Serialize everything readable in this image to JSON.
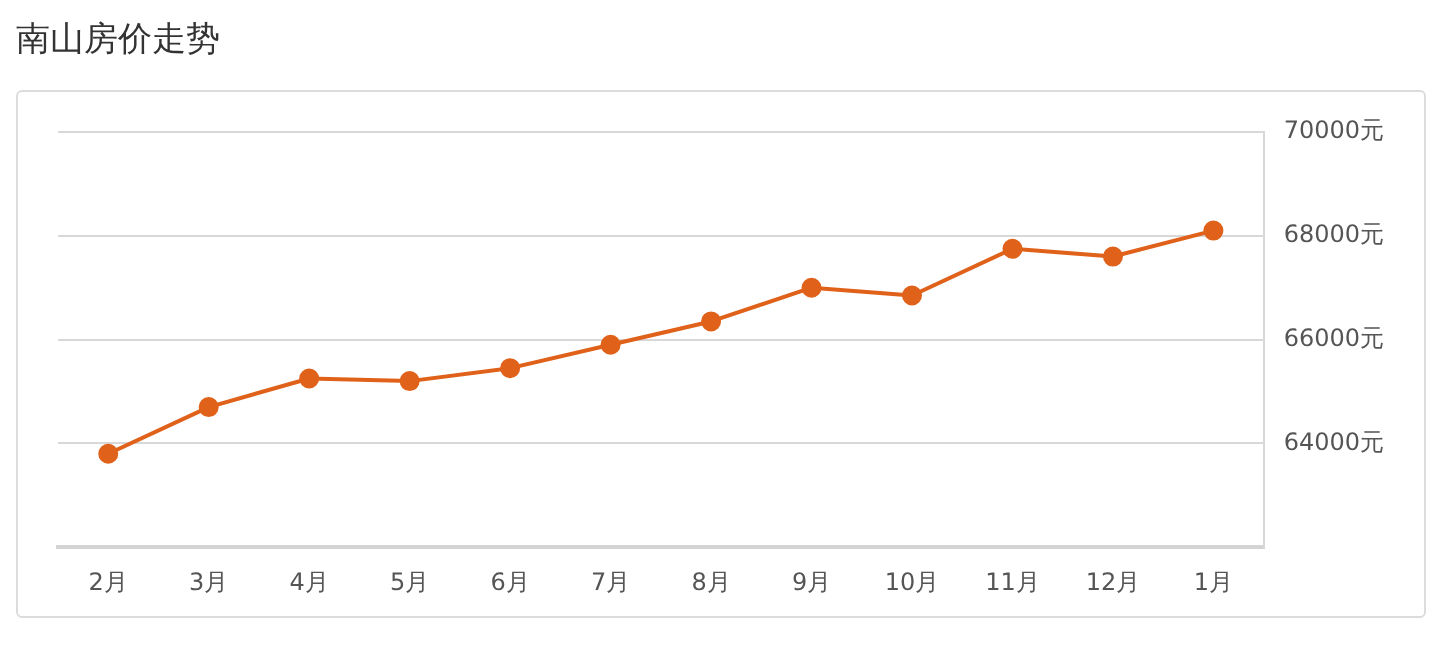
{
  "chart_data": {
    "type": "line",
    "title": "南山房价走势",
    "categories": [
      "2月",
      "3月",
      "4月",
      "5月",
      "6月",
      "7月",
      "8月",
      "9月",
      "10月",
      "11月",
      "12月",
      "1月"
    ],
    "series": [
      {
        "color": "#e0621a",
        "values": [
          63800,
          64700,
          65250,
          65200,
          65450,
          65900,
          66350,
          67000,
          66850,
          67750,
          67600,
          68100
        ]
      }
    ],
    "ylim": [
      62000,
      70000
    ],
    "yticks": [
      {
        "value": 64000,
        "label": "64000元"
      },
      {
        "value": 66000,
        "label": "66000元"
      },
      {
        "value": 68000,
        "label": "68000元"
      },
      {
        "value": 70000,
        "label": "70000元"
      }
    ],
    "grid": "y",
    "marker": "circle",
    "line_style": "solid",
    "legend": false
  }
}
